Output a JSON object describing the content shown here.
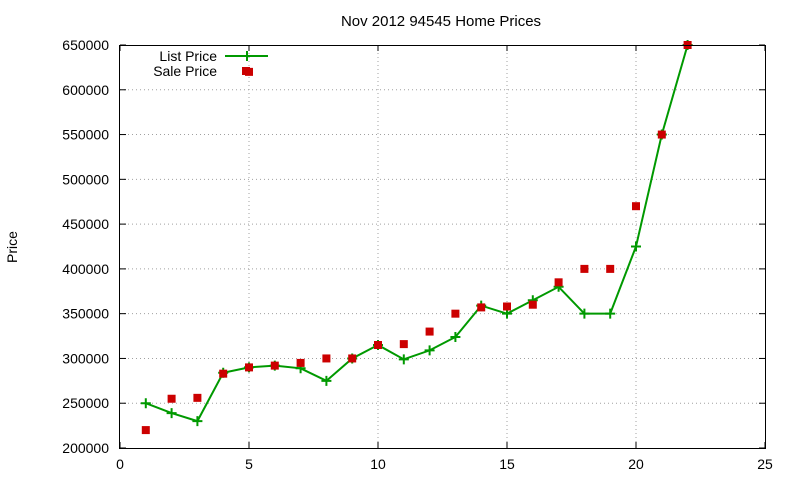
{
  "chart_data": {
    "type": "line",
    "title": "Nov 2012 94545 Home Prices",
    "xlabel": "",
    "ylabel": "Price",
    "xlim": [
      0,
      25
    ],
    "ylim": [
      200000,
      650000
    ],
    "x_ticks": [
      "0",
      "5",
      "10",
      "15",
      "20",
      "25"
    ],
    "y_ticks": [
      "200000",
      "250000",
      "300000",
      "350000",
      "400000",
      "450000",
      "500000",
      "550000",
      "600000",
      "650000"
    ],
    "grid": true,
    "legend_position": "top-left",
    "series": [
      {
        "name": "List Price",
        "style": "linespoints",
        "color": "#009900",
        "x": [
          1,
          2,
          3,
          4,
          5,
          6,
          7,
          8,
          9,
          10,
          11,
          12,
          13,
          14,
          15,
          16,
          17,
          18,
          19,
          20,
          21,
          22
        ],
        "y": [
          250000,
          239000,
          230000,
          284000,
          290000,
          292000,
          289000,
          275000,
          300000,
          315000,
          299000,
          309000,
          324000,
          359000,
          350000,
          365000,
          380000,
          350000,
          350000,
          425000,
          550000,
          650000
        ]
      },
      {
        "name": "Sale Price",
        "style": "points",
        "color": "#cc0000",
        "x": [
          1,
          2,
          3,
          4,
          5,
          5,
          6,
          7,
          8,
          9,
          10,
          11,
          12,
          13,
          14,
          15,
          16,
          17,
          18,
          19,
          20,
          21,
          22
        ],
        "y": [
          220000,
          255000,
          256000,
          283000,
          620000,
          290000,
          292000,
          295000,
          300000,
          300000,
          315000,
          316000,
          330000,
          350000,
          357000,
          358000,
          360000,
          385000,
          400000,
          400000,
          470000,
          550000,
          650000
        ]
      }
    ]
  }
}
